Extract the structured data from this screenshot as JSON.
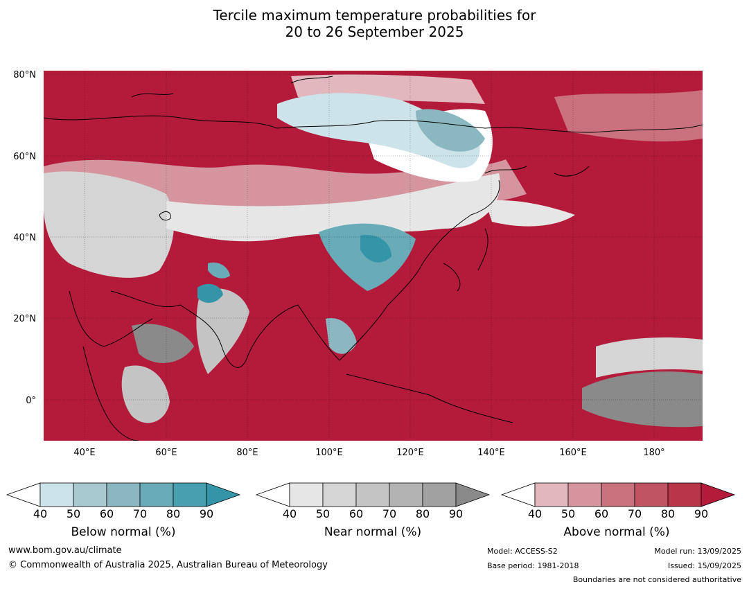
{
  "title_line1": "Tercile maximum temperature probabilities for",
  "title_line2": "20 to 26 September 2025",
  "axes": {
    "lat_labels": [
      "80°N",
      "60°N",
      "40°N",
      "20°N",
      "0°"
    ],
    "lon_labels": [
      "40°E",
      "60°E",
      "80°E",
      "100°E",
      "120°E",
      "140°E",
      "160°E",
      "180°"
    ],
    "lat_range": [
      -10,
      81
    ],
    "lon_range": [
      30,
      192
    ]
  },
  "legends": [
    {
      "name": "Below normal (%)",
      "ticks": [
        "40",
        "50",
        "60",
        "70",
        "80",
        "90"
      ],
      "colors": [
        "#ffffff",
        "#cbe3e9",
        "#a7c9cf",
        "#8bb7c0",
        "#6aabb8",
        "#479fb0",
        "#3595a8"
      ]
    },
    {
      "name": "Near normal (%)",
      "ticks": [
        "40",
        "50",
        "60",
        "70",
        "80",
        "90"
      ],
      "colors": [
        "#ffffff",
        "#e6e6e6",
        "#d5d5d5",
        "#c4c4c4",
        "#b3b3b3",
        "#a1a1a1",
        "#8a8a8a"
      ]
    },
    {
      "name": "Above normal (%)",
      "ticks": [
        "40",
        "50",
        "60",
        "70",
        "80",
        "90"
      ],
      "colors": [
        "#ffffff",
        "#e2b8be",
        "#d4959e",
        "#c9727e",
        "#c15463",
        "#b8354a",
        "#b41b3a"
      ]
    }
  ],
  "colors": {
    "above_strong": "#b41b3a",
    "above_mid": "#c9727e",
    "above_light": "#e2b8be",
    "near_light": "#e6e6e6",
    "near_mid": "#c4c4c4",
    "near_dark": "#8a8a8a",
    "below_light": "#cbe3e9",
    "below_mid": "#8bb7c0",
    "below_dark": "#3595a8"
  },
  "footer": {
    "website": "www.bom.gov.au/climate",
    "copyright": "© Commonwealth of Australia 2025, Australian Bureau of Meteorology",
    "model": "Model: ACCESS-S2",
    "base_period": "Base period: 1981-2018",
    "model_run": "Model run: 13/09/2025",
    "issued": "Issued: 15/09/2025",
    "disclaimer": "Boundaries are not considered authoritative"
  }
}
